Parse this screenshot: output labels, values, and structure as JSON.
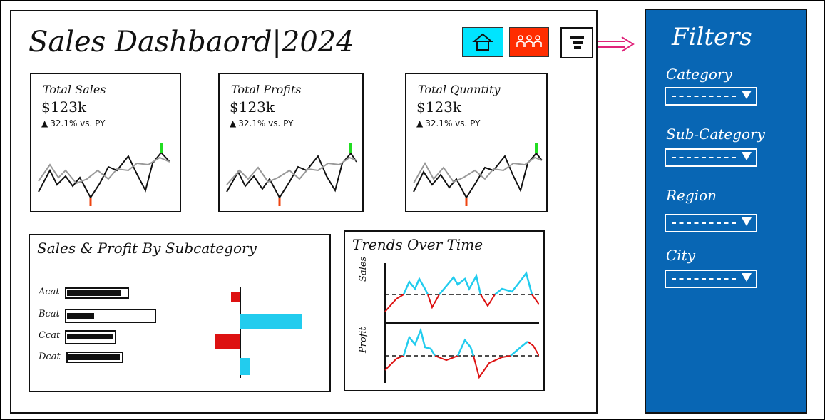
{
  "header": {
    "title": "Sales Dashbaord|2024",
    "home_icon": "home-icon",
    "people_icon": "people-icon",
    "filter_icon": "filter-list-icon",
    "colors": {
      "home": "#00e5ff",
      "people": "#ff2d00"
    }
  },
  "kpis": [
    {
      "label": "Total Sales",
      "value": "$123k",
      "delta": "32.1% vs. PY"
    },
    {
      "label": "Total Profits",
      "value": "$123k",
      "delta": "32.1% vs. PY"
    },
    {
      "label": "Total Quantity",
      "value": "$123k",
      "delta": "32.1% vs. PY"
    }
  ],
  "subcategory_panel": {
    "title": "Sales & Profit By Subcategory",
    "rows": [
      {
        "label": "Acat"
      },
      {
        "label": "Bcat"
      },
      {
        "label": "Ccat"
      },
      {
        "label": "Dcat"
      }
    ]
  },
  "trends_panel": {
    "title": "Trends Over Time",
    "rows": [
      {
        "label": "Sales"
      },
      {
        "label": "Profit"
      }
    ]
  },
  "filters": {
    "title": "Filters",
    "items": [
      {
        "label": "Category"
      },
      {
        "label": "Sub-Category"
      },
      {
        "label": "Region"
      },
      {
        "label": "City"
      }
    ]
  },
  "colors": {
    "sidebar": "#0866b4",
    "positive": "#22ccee",
    "negative": "#dd1111",
    "high": "#22dd22",
    "low": "#ee4411"
  }
}
